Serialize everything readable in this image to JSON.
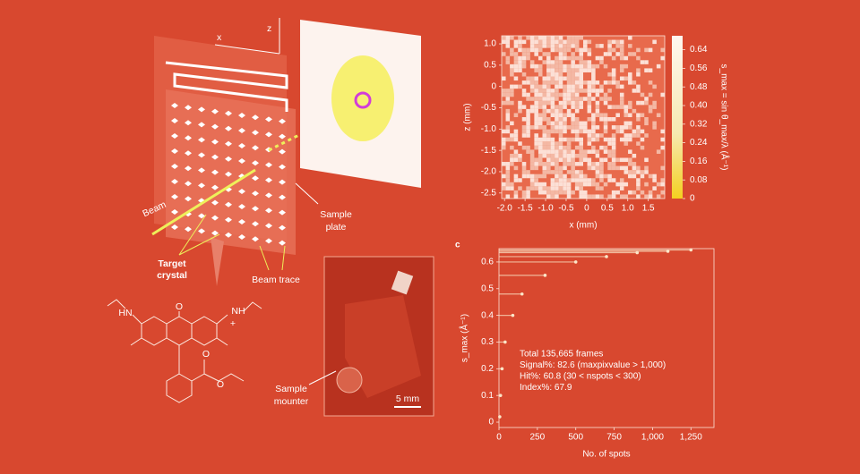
{
  "schematic": {
    "axis_x": "x",
    "axis_z": "z",
    "beam": "Beam",
    "target_crystal": [
      "Target",
      "crystal"
    ],
    "beam_trace": "Beam trace",
    "sample_plate": [
      "Sample",
      "plate"
    ],
    "sample_mounter": [
      "Sample",
      "mounter"
    ],
    "scale_bar": "5 mm"
  },
  "molecule": {
    "labels": [
      "HN",
      "NH",
      "+",
      "O",
      "O",
      "O"
    ]
  },
  "chart_data": [
    {
      "type": "heatmap",
      "xlabel": "x (mm)",
      "ylabel": "z (mm)",
      "colorbar_label": "s_max = sin θ_max/λ (Å⁻¹)",
      "xlim": [
        -2.07,
        1.9
      ],
      "xticks": [
        {
          "value": -2,
          "label": "-2.0"
        },
        -1.5,
        {
          "value": -1,
          "label": "-1.0"
        },
        -0.5,
        0,
        0.5,
        {
          "value": 1,
          "label": "1.0"
        },
        1.5
      ],
      "ylim": [
        -2.63,
        1.19
      ],
      "yticks": [
        {
          "value": 1,
          "label": "1.0"
        },
        0.5,
        0,
        -0.5,
        {
          "value": -1,
          "label": "-1.0"
        },
        -1.5,
        {
          "value": -2,
          "label": "-2.0"
        },
        -2.5
      ],
      "clim": [
        0,
        0.7
      ],
      "cticks": [
        0.64,
        0.56,
        0.48,
        {
          "value": 0.4,
          "label": "0.40"
        },
        0.32,
        0.24,
        0.16,
        0.08,
        0
      ]
    },
    {
      "type": "scatter",
      "panel_label": "c",
      "xlabel": "No. of spots",
      "ylabel": "s_max (Å⁻¹)",
      "xlim": [
        0,
        1400
      ],
      "xticks": [
        0,
        250,
        500,
        750,
        {
          "value": 1000,
          "label": "1,000"
        },
        {
          "value": 1250,
          "label": "1,250"
        }
      ],
      "ylim": [
        -0.02,
        0.65
      ],
      "yticks": [
        0,
        0.1,
        0.2,
        0.3,
        0.4,
        0.5,
        0.6
      ],
      "color": "#fbe6c8",
      "x": [
        5,
        10,
        20,
        40,
        90,
        150,
        300,
        500,
        700,
        900,
        1100,
        1250
      ],
      "values": [
        0.02,
        0.1,
        0.2,
        0.3,
        0.4,
        0.48,
        0.55,
        0.6,
        0.62,
        0.635,
        0.64,
        0.645
      ],
      "annotations": [
        "Total 135,665 frames",
        "Signal%: 82.6 (maxpixvalue > 1,000)",
        "Hit%: 60.8 (30 < nspots < 300)",
        "Index%: 67.9"
      ]
    }
  ]
}
